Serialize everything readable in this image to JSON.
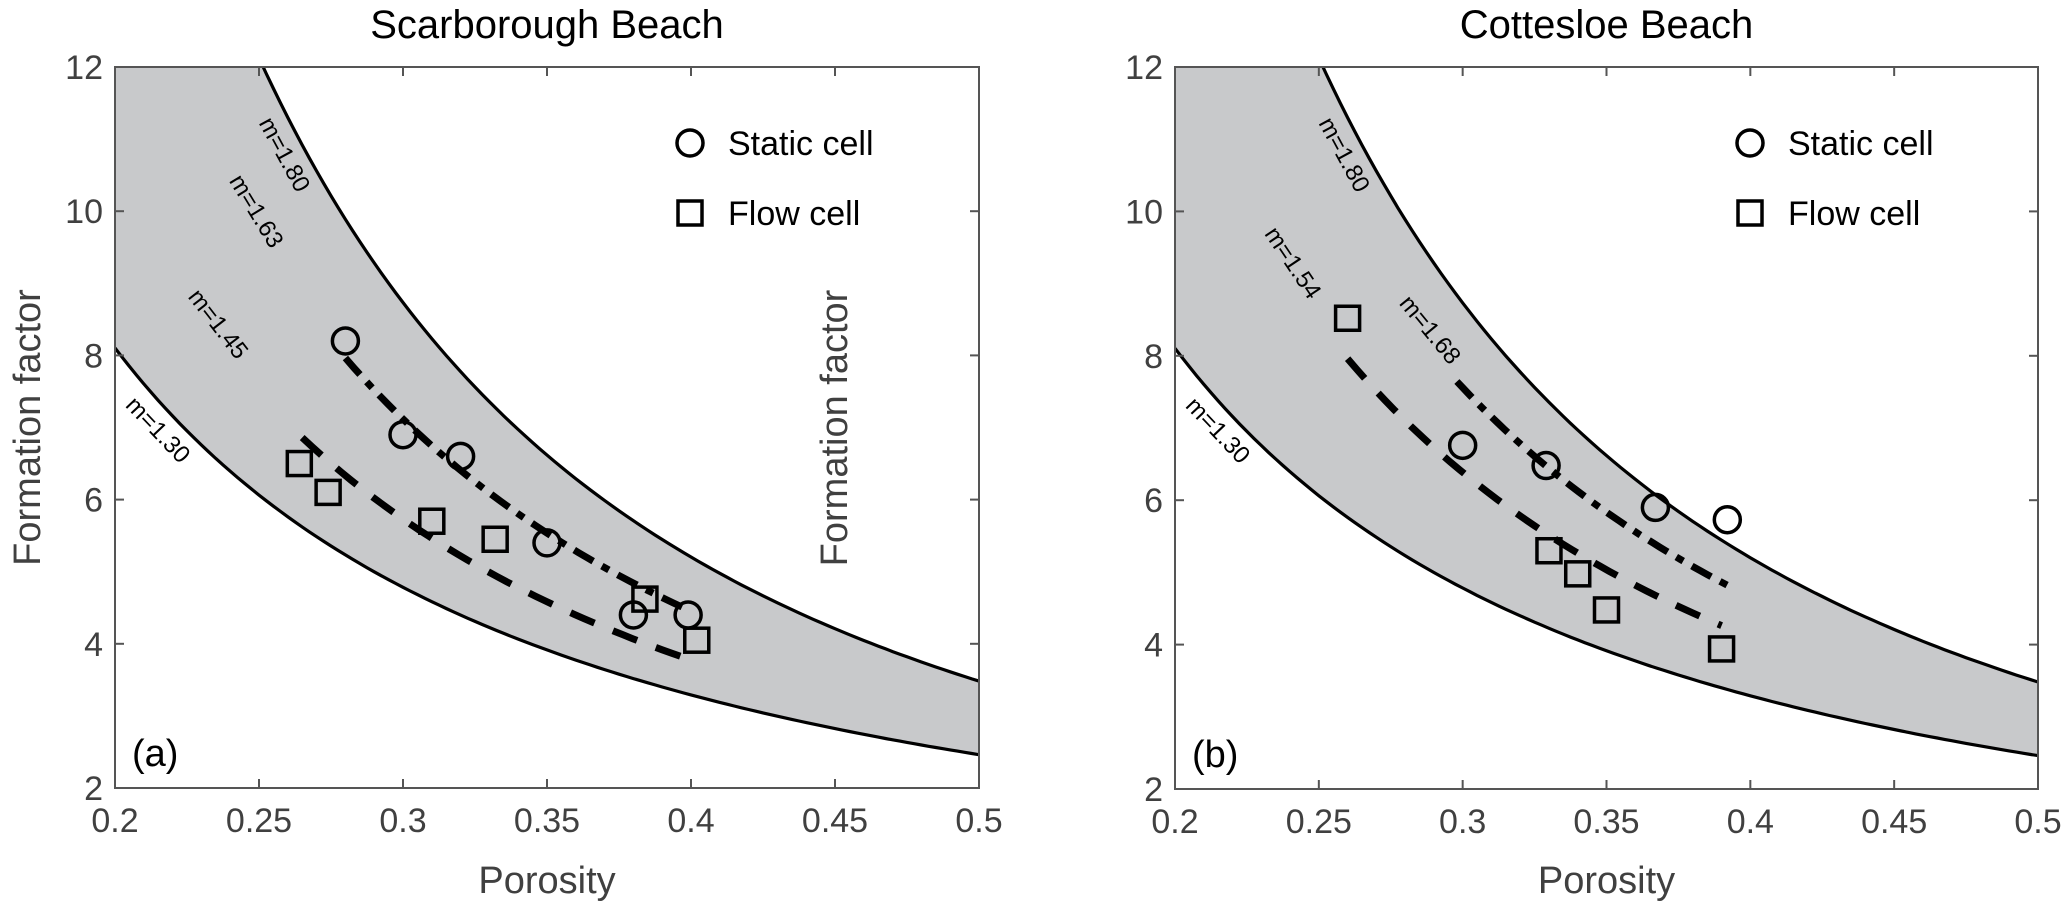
{
  "chart_data": [
    {
      "type": "scatter",
      "panel_tag": "(a)",
      "title": "Scarborough Beach",
      "xlabel": "Porosity",
      "ylabel": "Formation  factor",
      "xlim": [
        0.2,
        0.5
      ],
      "ylim": [
        2,
        12
      ],
      "xticks": [
        "0.2",
        "0.25",
        "0.3",
        "0.35",
        "0.4",
        "0.45",
        "0.5"
      ],
      "yticks": [
        "2",
        "4",
        "6",
        "8",
        "10",
        "12"
      ],
      "grid": false,
      "legend": {
        "position": "top-right",
        "entries": [
          {
            "marker": "circle",
            "label": "Static cell"
          },
          {
            "marker": "square",
            "label": "Flow cell"
          }
        ]
      },
      "band": {
        "description": "Archie envelope F = porosity^-m",
        "m_low": 1.3,
        "m_high": 1.8,
        "fill": "#c8c9cb",
        "labels": {
          "low": "m=1.30",
          "high": "m=1.80"
        }
      },
      "series": [
        {
          "name": "Static cell",
          "marker": "circle",
          "x": [
            0.28,
            0.3,
            0.32,
            0.35,
            0.38,
            0.399
          ],
          "y": [
            8.2,
            6.9,
            6.6,
            5.4,
            4.4,
            4.4
          ]
        },
        {
          "name": "Flow cell",
          "marker": "square",
          "x": [
            0.264,
            0.274,
            0.31,
            0.332,
            0.384,
            0.402
          ],
          "y": [
            6.5,
            6.1,
            5.7,
            5.45,
            4.62,
            4.05
          ]
        }
      ],
      "fits": [
        {
          "name": "Static cell fit",
          "m": 1.63,
          "label": "m=1.63",
          "style": "dashdot",
          "x_range": [
            0.28,
            0.4
          ]
        },
        {
          "name": "Flow cell fit",
          "m": 1.45,
          "label": "m=1.45",
          "style": "dashed",
          "x_range": [
            0.265,
            0.4
          ]
        }
      ]
    },
    {
      "type": "scatter",
      "panel_tag": "(b)",
      "title": "Cottesloe Beach",
      "xlabel": "Porosity",
      "ylabel": "Formation  factor",
      "xlim": [
        0.2,
        0.5
      ],
      "ylim": [
        2,
        12
      ],
      "xticks": [
        "0.2",
        "0.25",
        "0.3",
        "0.35",
        "0.4",
        "0.45",
        "0.5"
      ],
      "yticks": [
        "2",
        "4",
        "6",
        "8",
        "10",
        "12"
      ],
      "grid": false,
      "legend": {
        "position": "top-right",
        "entries": [
          {
            "marker": "circle",
            "label": "Static cell"
          },
          {
            "marker": "square",
            "label": "Flow cell"
          }
        ]
      },
      "band": {
        "description": "Archie envelope F = porosity^-m",
        "m_low": 1.3,
        "m_high": 1.8,
        "fill": "#c8c9cb",
        "labels": {
          "low": "m=1.30",
          "high": "m=1.80"
        }
      },
      "series": [
        {
          "name": "Static cell",
          "marker": "circle",
          "x": [
            0.3,
            0.329,
            0.367,
            0.392
          ],
          "y": [
            6.76,
            6.48,
            5.9,
            5.73
          ]
        },
        {
          "name": "Flow cell",
          "marker": "square",
          "x": [
            0.26,
            0.33,
            0.34,
            0.35,
            0.39
          ],
          "y": [
            8.52,
            5.3,
            4.98,
            4.48,
            3.94
          ]
        }
      ],
      "fits": [
        {
          "name": "Static cell fit",
          "m": 1.68,
          "label": "m=1.68",
          "style": "dashdot",
          "x_range": [
            0.298,
            0.392
          ]
        },
        {
          "name": "Flow cell fit",
          "m": 1.54,
          "label": "m=1.54",
          "style": "dashed",
          "x_range": [
            0.26,
            0.39
          ]
        }
      ]
    }
  ]
}
